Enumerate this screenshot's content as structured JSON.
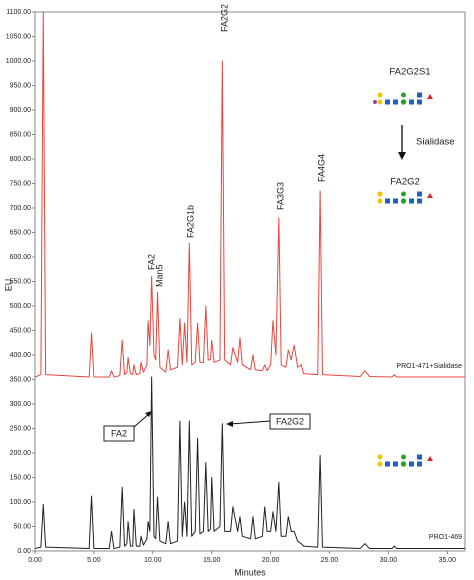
{
  "chart_data": {
    "type": "line",
    "y_label": "EU",
    "x_label": "Minutes",
    "xlim": [
      0,
      36.5
    ],
    "ylim": [
      0,
      1100
    ],
    "xticks": [
      {
        "value": 0,
        "label": "0.00"
      },
      {
        "value": 5,
        "label": "5.00"
      },
      {
        "value": 10,
        "label": "10.00"
      },
      {
        "value": 15,
        "label": "15.00"
      },
      {
        "value": 20,
        "label": "20.00"
      },
      {
        "value": 25,
        "label": "25.00"
      },
      {
        "value": 30,
        "label": "30.00"
      },
      {
        "value": 35,
        "label": "35.00"
      }
    ],
    "yticks": [
      {
        "value": 0,
        "label": "0.00"
      },
      {
        "value": 50,
        "label": "50.00"
      },
      {
        "value": 100,
        "label": "100.00"
      },
      {
        "value": 150,
        "label": "150.00"
      },
      {
        "value": 200,
        "label": "200.00"
      },
      {
        "value": 250,
        "label": "250.00"
      },
      {
        "value": 300,
        "label": "300.00"
      },
      {
        "value": 350,
        "label": "350.00"
      },
      {
        "value": 400,
        "label": "400.00"
      },
      {
        "value": 450,
        "label": "450.00"
      },
      {
        "value": 500,
        "label": "500.00"
      },
      {
        "value": 550,
        "label": "550.00"
      },
      {
        "value": 600,
        "label": "600.00"
      },
      {
        "value": 650,
        "label": "650.00"
      },
      {
        "value": 700,
        "label": "700.00"
      },
      {
        "value": 750,
        "label": "750.00"
      },
      {
        "value": 800,
        "label": "800.00"
      },
      {
        "value": 850,
        "label": "850.00"
      },
      {
        "value": 900,
        "label": "900.00"
      },
      {
        "value": 950,
        "label": "950.00"
      },
      {
        "value": 1000,
        "label": "1000.00"
      },
      {
        "value": 1050,
        "label": "1050.00"
      },
      {
        "value": 1100,
        "label": "1100.00"
      }
    ],
    "x": [
      0,
      0.5,
      0.7,
      0.9,
      4.6,
      4.8,
      5.0,
      6.3,
      6.5,
      6.7,
      7.2,
      7.4,
      7.6,
      7.8,
      7.9,
      8.1,
      8.3,
      8.4,
      8.6,
      8.9,
      9.0,
      9.2,
      9.5,
      9.6,
      9.75,
      9.9,
      10.1,
      10.25,
      10.4,
      10.6,
      11.1,
      11.3,
      11.5,
      12.1,
      12.3,
      12.5,
      12.7,
      12.9,
      13.1,
      13.3,
      13.6,
      13.8,
      14.0,
      14.3,
      14.5,
      14.7,
      14.9,
      15.0,
      15.2,
      15.7,
      15.9,
      16.1,
      16.6,
      16.8,
      17.2,
      17.4,
      17.6,
      18.3,
      18.5,
      18.7,
      19.3,
      19.5,
      19.7,
      20.0,
      20.2,
      20.45,
      20.7,
      20.9,
      21.3,
      21.5,
      21.75,
      22.0,
      22.3,
      22.6,
      22.8,
      24.0,
      24.2,
      24.4,
      27.6,
      28,
      28.4,
      30.3,
      30.5,
      30.7,
      36.5
    ],
    "series": [
      {
        "name": "PRO1-471+Sialidase",
        "color": "#e8453c",
        "values": [
          355,
          360,
          1100,
          360,
          355,
          445,
          355,
          355,
          368,
          355,
          358,
          430,
          360,
          365,
          395,
          362,
          360,
          380,
          360,
          362,
          385,
          365,
          380,
          470,
          420,
          560,
          400,
          390,
          528,
          375,
          365,
          410,
          370,
          375,
          475,
          380,
          465,
          385,
          628,
          380,
          385,
          465,
          385,
          385,
          500,
          390,
          390,
          430,
          385,
          390,
          1000,
          390,
          380,
          415,
          385,
          435,
          380,
          370,
          400,
          370,
          368,
          380,
          368,
          380,
          470,
          400,
          680,
          380,
          375,
          410,
          390,
          420,
          375,
          380,
          362,
          360,
          735,
          360,
          356,
          368,
          356,
          355,
          360,
          355,
          355
        ]
      },
      {
        "name": "PRO1-469",
        "color": "#222222",
        "values": [
          5,
          8,
          95,
          8,
          5,
          112,
          5,
          5,
          40,
          5,
          8,
          130,
          10,
          15,
          60,
          10,
          10,
          85,
          10,
          10,
          30,
          12,
          25,
          60,
          40,
          355,
          30,
          25,
          110,
          20,
          15,
          60,
          15,
          20,
          265,
          30,
          100,
          30,
          265,
          30,
          40,
          230,
          35,
          40,
          180,
          40,
          45,
          150,
          40,
          50,
          260,
          40,
          40,
          90,
          40,
          70,
          30,
          25,
          70,
          25,
          30,
          90,
          40,
          40,
          80,
          40,
          140,
          30,
          30,
          70,
          40,
          40,
          20,
          15,
          10,
          8,
          195,
          8,
          5,
          15,
          5,
          5,
          10,
          5,
          5
        ]
      }
    ],
    "peak_labels": [
      "FA2",
      "Man5",
      "FA2G1b",
      "FA2G2",
      "FA3G3",
      "FA4G4"
    ],
    "annotations": {
      "before": "FA2G2S1",
      "enzyme": "Sialidase",
      "after": "FA2G2",
      "box_left": "FA2",
      "box_right": "FA2G2"
    }
  }
}
